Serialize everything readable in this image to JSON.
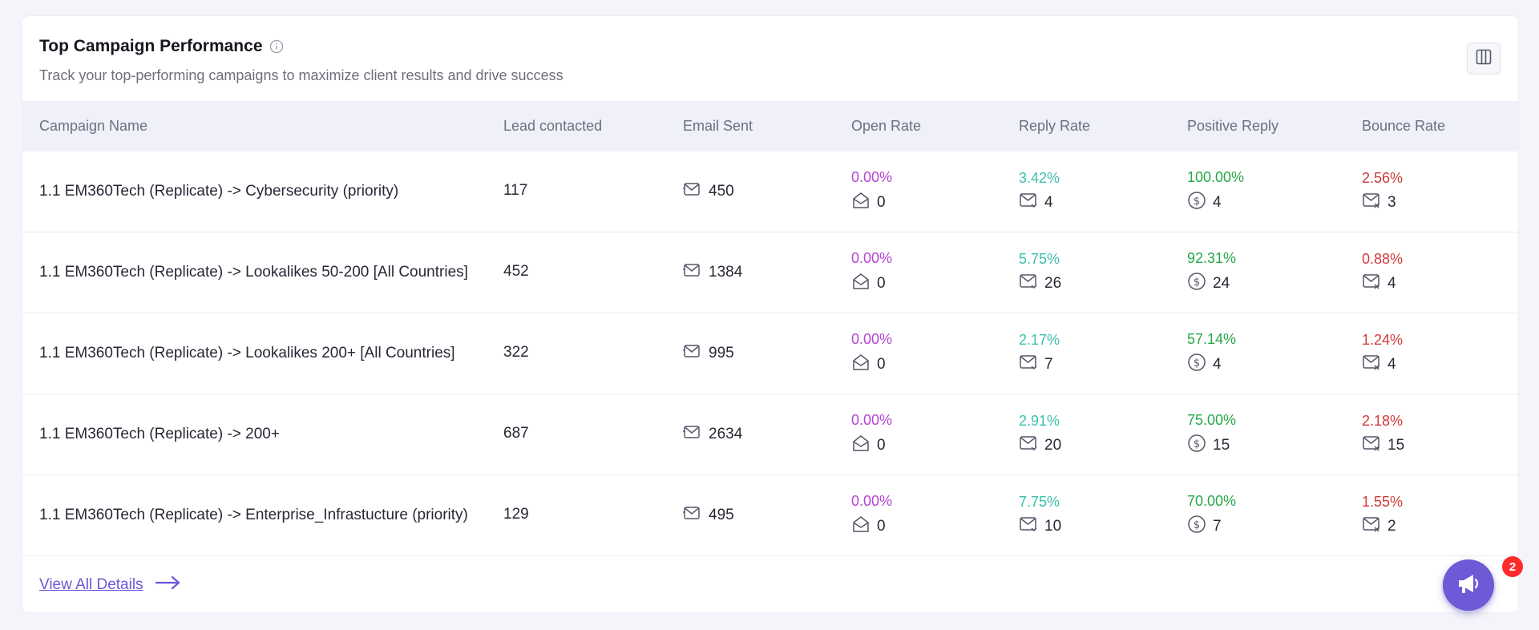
{
  "card": {
    "title": "Top Campaign Performance",
    "subtitle": "Track your top-performing campaigns to maximize client results and drive success"
  },
  "table": {
    "headers": [
      "Campaign Name",
      "Lead contacted",
      "Email Sent",
      "Open Rate",
      "Reply Rate",
      "Positive Reply",
      "Bounce Rate"
    ],
    "rows": [
      {
        "name": "1.1 EM360Tech (Replicate) -> Cybersecurity (priority)",
        "lead": "117",
        "sent": "450",
        "open_pct": "0.00%",
        "open": "0",
        "reply_pct": "3.42%",
        "reply": "4",
        "pos_pct": "100.00%",
        "pos": "4",
        "bounce_pct": "2.56%",
        "bounce": "3"
      },
      {
        "name": "1.1 EM360Tech (Replicate) -> Lookalikes 50-200 [All Countries]",
        "lead": "452",
        "sent": "1384",
        "open_pct": "0.00%",
        "open": "0",
        "reply_pct": "5.75%",
        "reply": "26",
        "pos_pct": "92.31%",
        "pos": "24",
        "bounce_pct": "0.88%",
        "bounce": "4"
      },
      {
        "name": "1.1 EM360Tech (Replicate) -> Lookalikes 200+ [All Countries]",
        "lead": "322",
        "sent": "995",
        "open_pct": "0.00%",
        "open": "0",
        "reply_pct": "2.17%",
        "reply": "7",
        "pos_pct": "57.14%",
        "pos": "4",
        "bounce_pct": "1.24%",
        "bounce": "4"
      },
      {
        "name": "1.1 EM360Tech (Replicate) -> 200+",
        "lead": "687",
        "sent": "2634",
        "open_pct": "0.00%",
        "open": "0",
        "reply_pct": "2.91%",
        "reply": "20",
        "pos_pct": "75.00%",
        "pos": "15",
        "bounce_pct": "2.18%",
        "bounce": "15"
      },
      {
        "name": "1.1 EM360Tech (Replicate) -> Enterprise_Infrastucture (priority)",
        "lead": "129",
        "sent": "495",
        "open_pct": "0.00%",
        "open": "0",
        "reply_pct": "7.75%",
        "reply": "10",
        "pos_pct": "70.00%",
        "pos": "7",
        "bounce_pct": "1.55%",
        "bounce": "2"
      }
    ]
  },
  "footer": {
    "view_all": "View All Details"
  },
  "widget": {
    "badge_count": "2"
  },
  "colors": {
    "open": "#b543d4",
    "reply": "#3cbfae",
    "positive": "#27a745",
    "bounce": "#d23a3a",
    "accent": "#6c5ad6"
  }
}
